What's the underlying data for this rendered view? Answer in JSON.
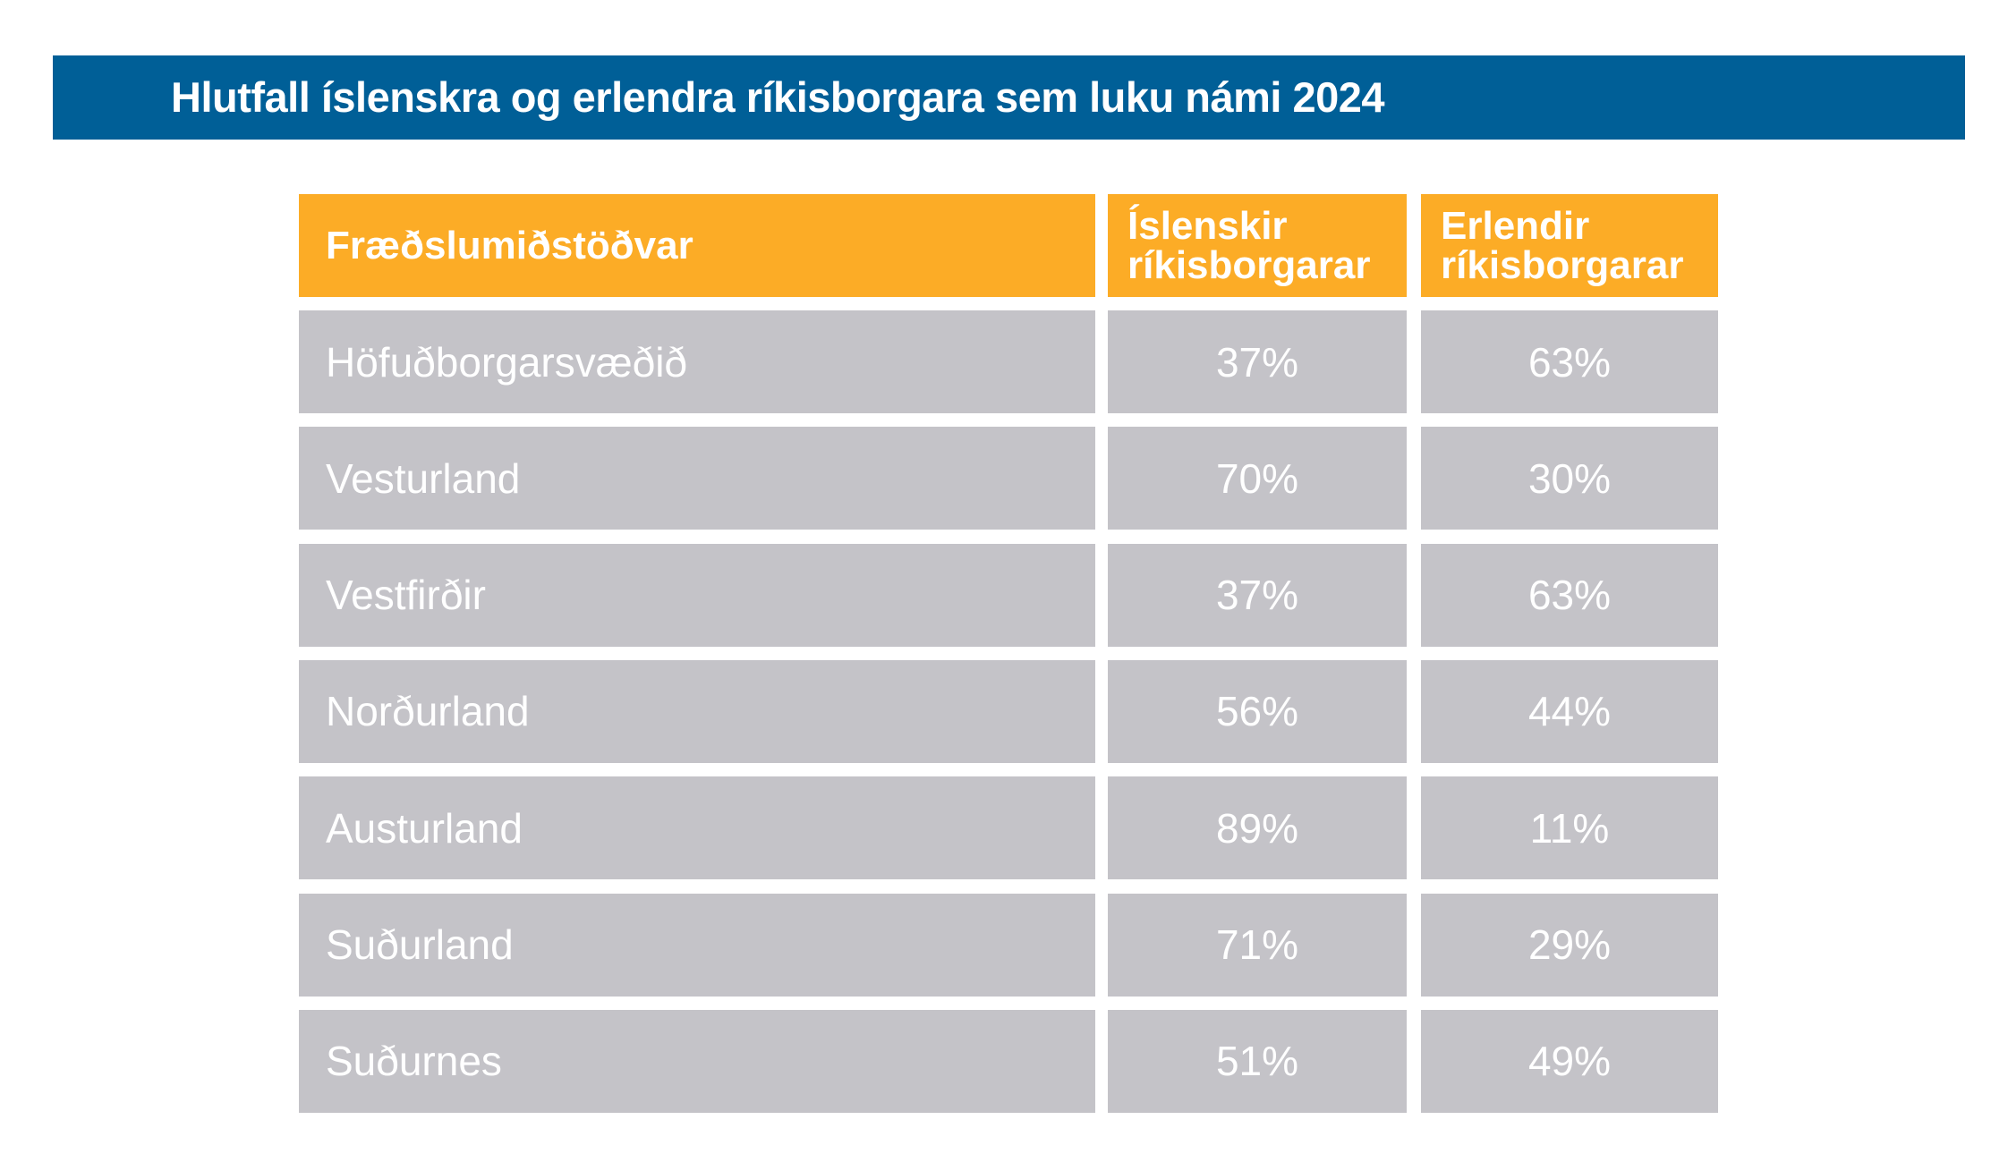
{
  "title": "Hlutfall íslenskra og erlendra ríkisborgara sem luku námi 2024",
  "colors": {
    "banner": "#005f97",
    "header": "#fcac26",
    "row": "#c4c3c8"
  },
  "table": {
    "headers": {
      "region": "Fræðslumiðstöðvar",
      "icelandic": [
        "Íslenskir",
        "ríkisborgarar"
      ],
      "foreign": [
        "Erlendir",
        "ríkisborgarar"
      ]
    },
    "rows": [
      {
        "region": "Höfuðborgarsvæðið",
        "icelandic": "37%",
        "foreign": "63%"
      },
      {
        "region": "Vesturland",
        "icelandic": "70%",
        "foreign": "30%"
      },
      {
        "region": "Vestfirðir",
        "icelandic": "37%",
        "foreign": "63%"
      },
      {
        "region": "Norðurland",
        "icelandic": "56%",
        "foreign": "44%"
      },
      {
        "region": "Austurland",
        "icelandic": "89%",
        "foreign": "11%"
      },
      {
        "region": "Suðurland",
        "icelandic": "71%",
        "foreign": "29%"
      },
      {
        "region": "Suðurnes",
        "icelandic": "51%",
        "foreign": "49%"
      }
    ]
  }
}
